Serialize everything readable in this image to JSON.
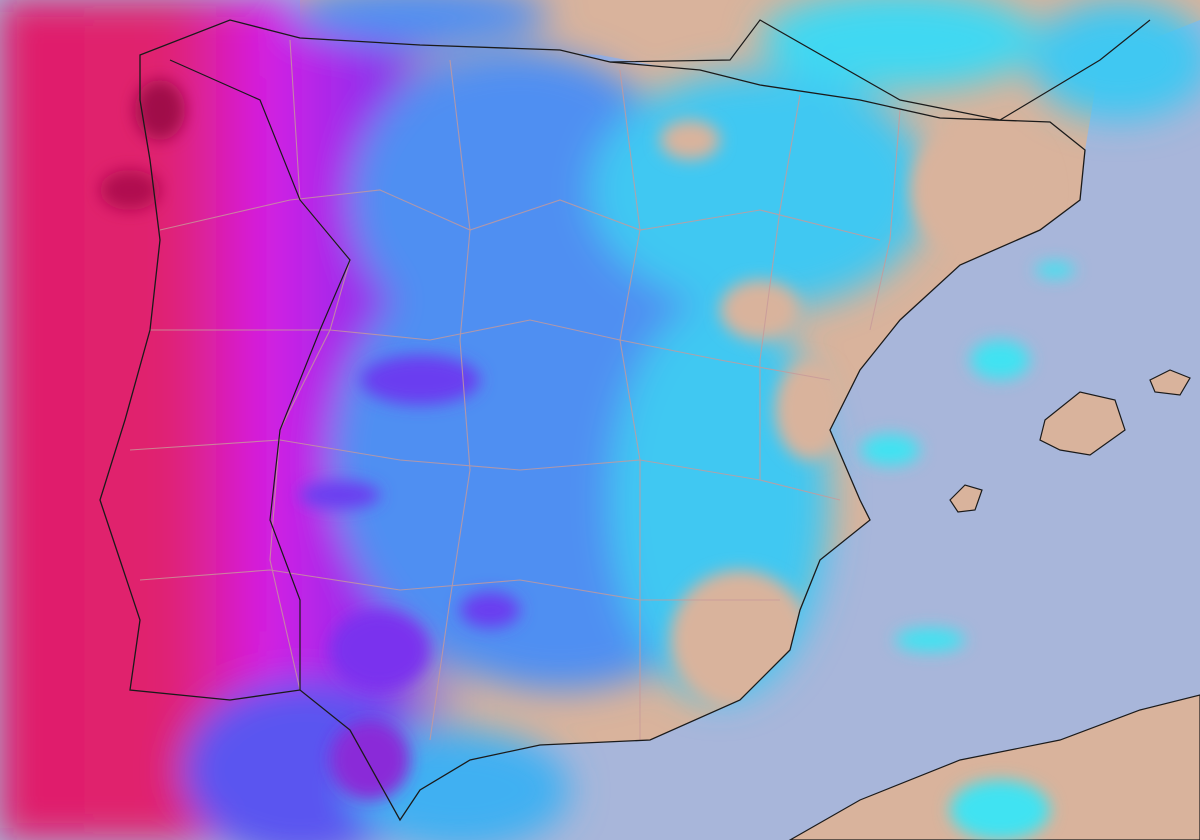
{
  "map": {
    "colors": {
      "sea": "#a8b6da",
      "land": "#d9b39c",
      "precip_light": "#3fe3f2",
      "precip_moderate": "#4f8ff2",
      "precip_heavy": "#6a3cf0",
      "precip_very_heavy": "#d51fe3",
      "precip_extreme": "#e01f6b",
      "coastline": "#1a1a1a",
      "borders": "#c89a9a"
    }
  }
}
